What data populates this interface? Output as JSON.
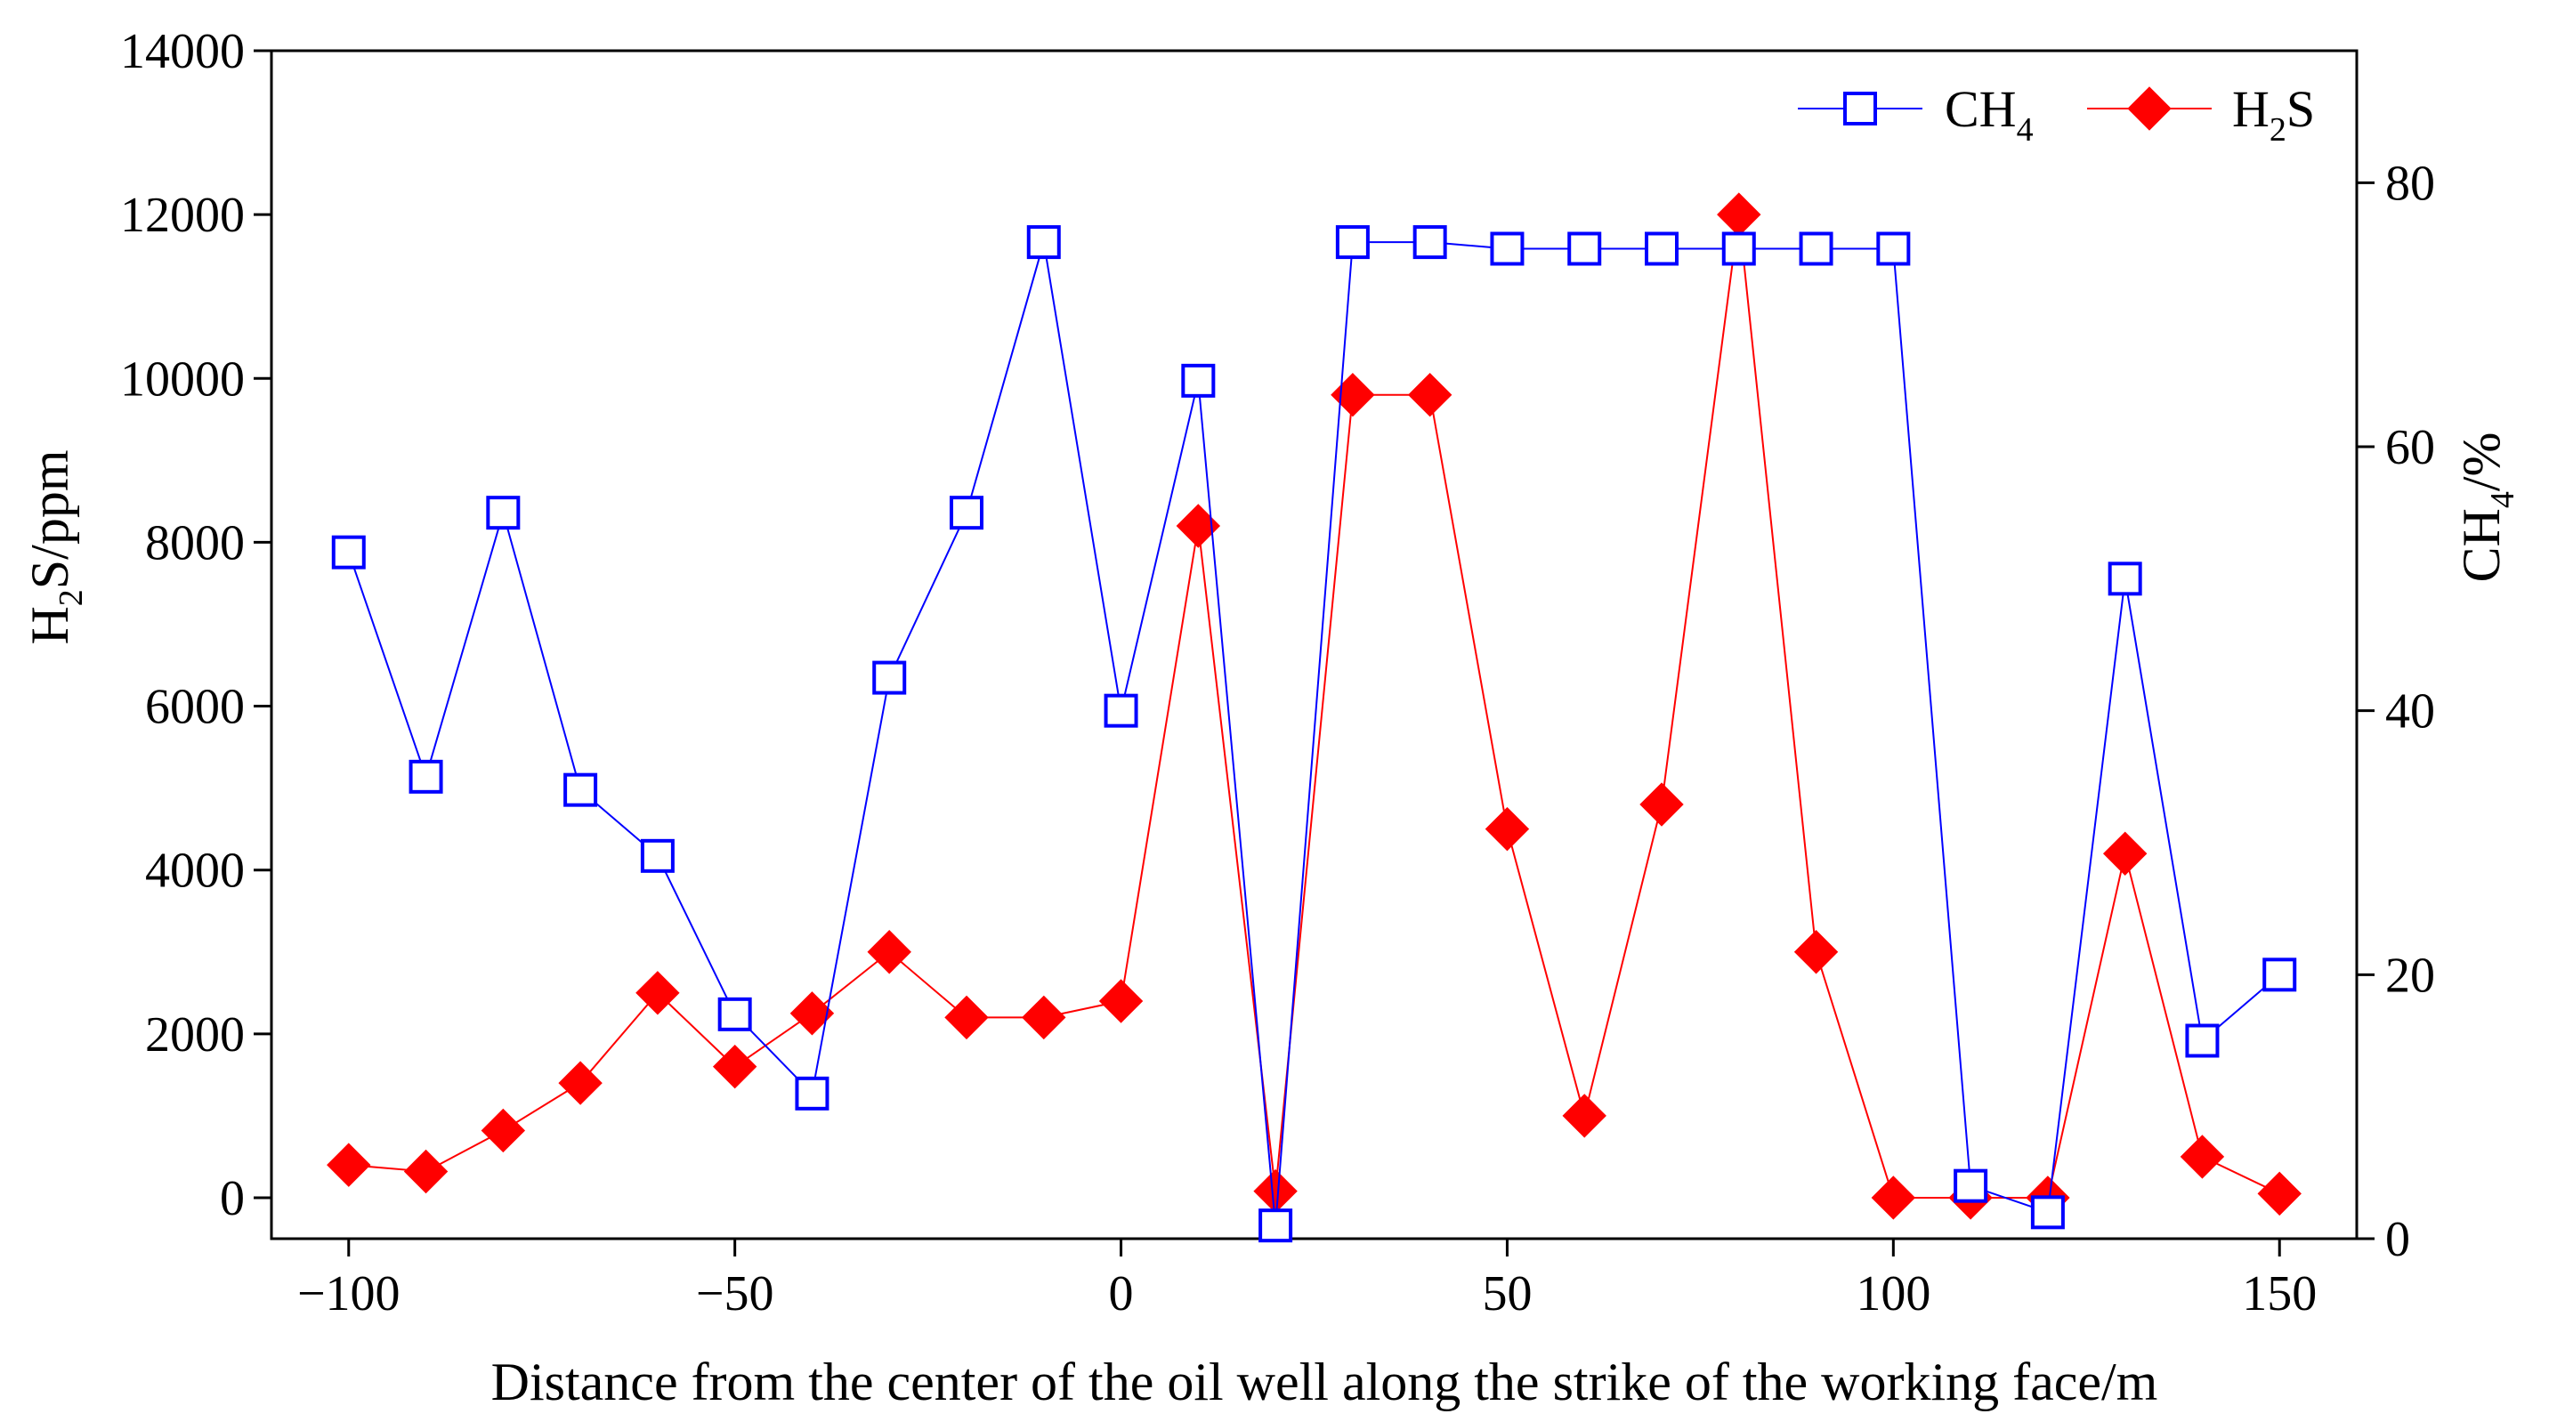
{
  "chart_data": {
    "type": "line",
    "xlabel": "Distance from the center of the oil well along the strike of the working face/m",
    "ylabel_left": {
      "base": "H",
      "sub": "2",
      "rest": "S/ppm"
    },
    "ylabel_right": {
      "base": "CH",
      "sub": "4",
      "rest": "/%"
    },
    "xlim": [
      -110,
      160
    ],
    "ylim_left": [
      -500,
      14000
    ],
    "ylim_right": [
      0,
      90
    ],
    "x_ticks": [
      -100,
      -50,
      0,
      50,
      100,
      150
    ],
    "x_tick_labels": [
      "−100",
      "−50",
      "0",
      "50",
      "100",
      "150"
    ],
    "y_left_ticks": [
      0,
      2000,
      4000,
      6000,
      8000,
      10000,
      12000,
      14000
    ],
    "y_left_tick_labels": [
      "0",
      "2000",
      "4000",
      "6000",
      "8000",
      "10000",
      "12000",
      "14000"
    ],
    "y_right_ticks": [
      0,
      20,
      40,
      60,
      80
    ],
    "y_right_tick_labels": [
      "0",
      "20",
      "40",
      "60",
      "80"
    ],
    "series": [
      {
        "name": "CH4",
        "label_base": "CH",
        "label_sub": "4",
        "axis": "right",
        "color": "#0000ff",
        "marker": "open-square",
        "x": [
          -100,
          -90,
          -80,
          -70,
          -60,
          -50,
          -40,
          -30,
          -20,
          -10,
          0,
          10,
          20,
          30,
          40,
          50,
          60,
          70,
          80,
          90,
          100,
          110,
          120,
          130,
          140,
          150
        ],
        "y": [
          52,
          35,
          55,
          34,
          29,
          17,
          11,
          42.5,
          55,
          75.5,
          40,
          65,
          1,
          75.5,
          75.5,
          75,
          75,
          75,
          75,
          75,
          75,
          4,
          2,
          50,
          15,
          20
        ]
      },
      {
        "name": "H2S",
        "label_base": "H",
        "label_sub": "2",
        "label_rest": "S",
        "axis": "left",
        "color": "#ff0000",
        "marker": "filled-diamond",
        "x": [
          -100,
          -90,
          -80,
          -70,
          -60,
          -50,
          -40,
          -30,
          -20,
          -10,
          0,
          10,
          20,
          30,
          40,
          50,
          60,
          70,
          80,
          90,
          100,
          110,
          120,
          130,
          140,
          150
        ],
        "y": [
          400,
          320,
          820,
          1400,
          2500,
          1600,
          2250,
          3000,
          2200,
          2200,
          2400,
          8200,
          80,
          9800,
          9800,
          4500,
          1000,
          4800,
          12000,
          3000,
          0,
          0,
          0,
          4200,
          500,
          50
        ]
      }
    ],
    "legend_position": "top-right"
  }
}
